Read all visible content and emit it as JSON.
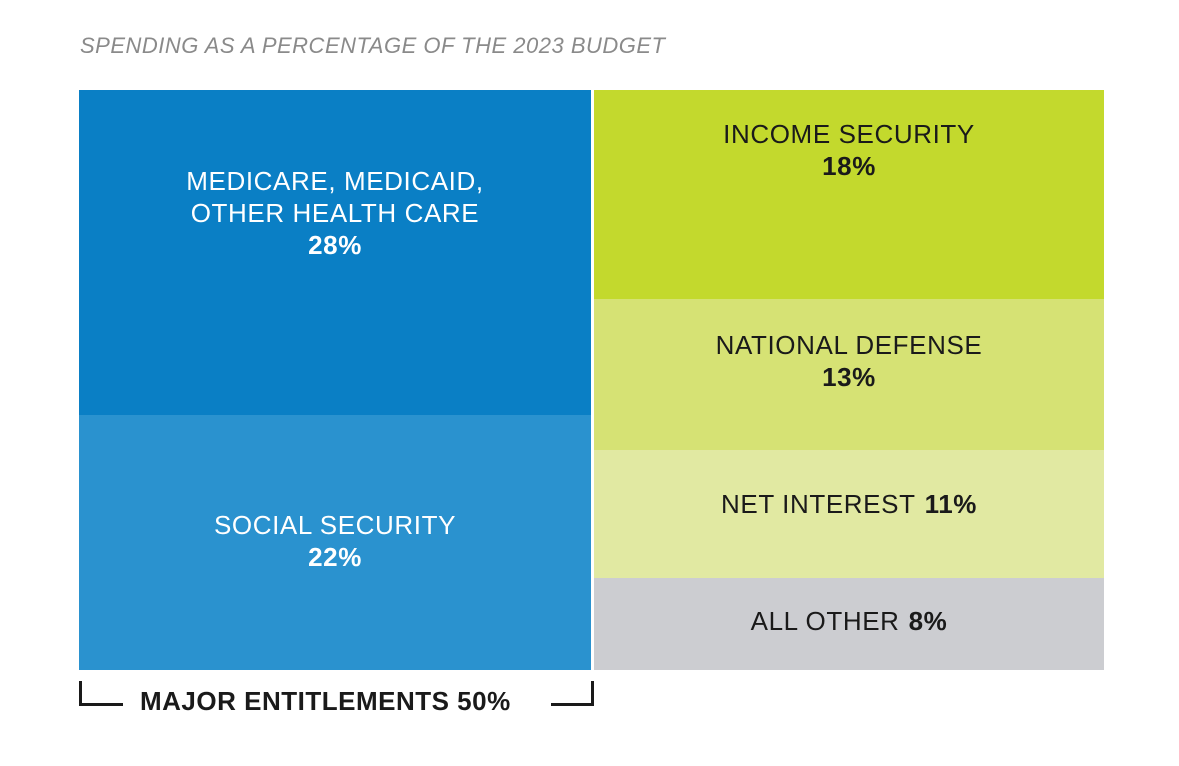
{
  "title": "SPENDING AS A PERCENTAGE OF THE 2023 BUDGET",
  "chart_data": {
    "type": "treemap",
    "title": "SPENDING AS A PERCENTAGE OF THE 2023 BUDGET",
    "unit": "%",
    "groups": [
      {
        "label": "MAJOR ENTITLEMENTS 50%",
        "total": 50,
        "items": [
          {
            "name_lines": [
              "MEDICARE, MEDICAID,",
              "OTHER HEALTH CARE"
            ],
            "value": 28,
            "value_label": "28%",
            "color": "#0a7fc5"
          },
          {
            "name_lines": [
              "SOCIAL SECURITY"
            ],
            "value": 22,
            "value_label": "22%",
            "color": "#2a92cf"
          }
        ]
      },
      {
        "label": "",
        "total": 50,
        "items": [
          {
            "name_lines": [
              "INCOME SECURITY"
            ],
            "value": 18,
            "value_label": "18%",
            "color": "#c3d92d"
          },
          {
            "name_lines": [
              "NATIONAL DEFENSE"
            ],
            "value": 13,
            "value_label": "13%",
            "color": "#d6e274"
          },
          {
            "name_lines": [
              "NET INTEREST"
            ],
            "value": 11,
            "value_label": "11%",
            "color": "#e1e9a2"
          },
          {
            "name_lines": [
              "ALL OTHER"
            ],
            "value": 8,
            "value_label": "8%",
            "color": "#cccdd1"
          }
        ]
      }
    ]
  },
  "bracket": {
    "label": "MAJOR ENTITLEMENTS 50%"
  }
}
